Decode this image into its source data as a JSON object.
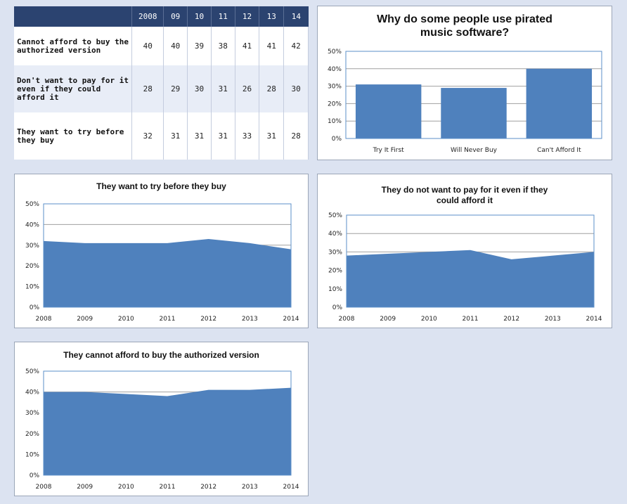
{
  "table": {
    "columns": [
      "",
      "2008",
      "09",
      "10",
      "11",
      "12",
      "13",
      "14"
    ],
    "rows": [
      {
        "label": "Cannot afford to buy the authorized version",
        "values": [
          40,
          40,
          39,
          38,
          41,
          41,
          42
        ]
      },
      {
        "label": "Don't want to pay for it even if they could afford it",
        "values": [
          28,
          29,
          30,
          31,
          26,
          28,
          30
        ]
      },
      {
        "label": "They want to try before they buy",
        "values": [
          32,
          31,
          31,
          31,
          33,
          31,
          28
        ]
      }
    ]
  },
  "colors": {
    "fill": "#4f81bd",
    "header": "#2b4370",
    "grid": "#a0a0a0",
    "axis": "#5b8fc9"
  },
  "chart_data": [
    {
      "id": "reasons",
      "type": "bar",
      "title": "Why do some people use pirated music software?",
      "categories": [
        "Try It First",
        "Will Never Buy",
        "Can't Afford It"
      ],
      "values": [
        31,
        29,
        40
      ],
      "ylim": [
        0,
        50
      ],
      "yticks": [
        "0%",
        "10%",
        "20%",
        "30%",
        "40%",
        "50%"
      ],
      "grid": true
    },
    {
      "id": "try",
      "type": "area",
      "title": "They want to try before they buy",
      "x": [
        "2008",
        "2009",
        "2010",
        "2011",
        "2012",
        "2013",
        "2014"
      ],
      "values": [
        32,
        31,
        31,
        31,
        33,
        31,
        28
      ],
      "ylim": [
        0,
        50
      ],
      "yticks": [
        "0%",
        "10%",
        "20%",
        "30%",
        "40%",
        "50%"
      ],
      "grid": true
    },
    {
      "id": "nopay",
      "type": "area",
      "title": "They do not want to pay for it even if they could afford it",
      "x": [
        "2008",
        "2009",
        "2010",
        "2011",
        "2012",
        "2013",
        "2014"
      ],
      "values": [
        28,
        29,
        30,
        31,
        26,
        28,
        30
      ],
      "ylim": [
        0,
        50
      ],
      "yticks": [
        "0%",
        "10%",
        "20%",
        "30%",
        "40%",
        "50%"
      ],
      "grid": true
    },
    {
      "id": "afford",
      "type": "area",
      "title": "They cannot afford to buy the authorized version",
      "x": [
        "2008",
        "2009",
        "2010",
        "2011",
        "2012",
        "2013",
        "2014"
      ],
      "values": [
        40,
        40,
        39,
        38,
        41,
        41,
        42
      ],
      "ylim": [
        0,
        50
      ],
      "yticks": [
        "0%",
        "10%",
        "20%",
        "30%",
        "40%",
        "50%"
      ],
      "grid": true
    }
  ]
}
